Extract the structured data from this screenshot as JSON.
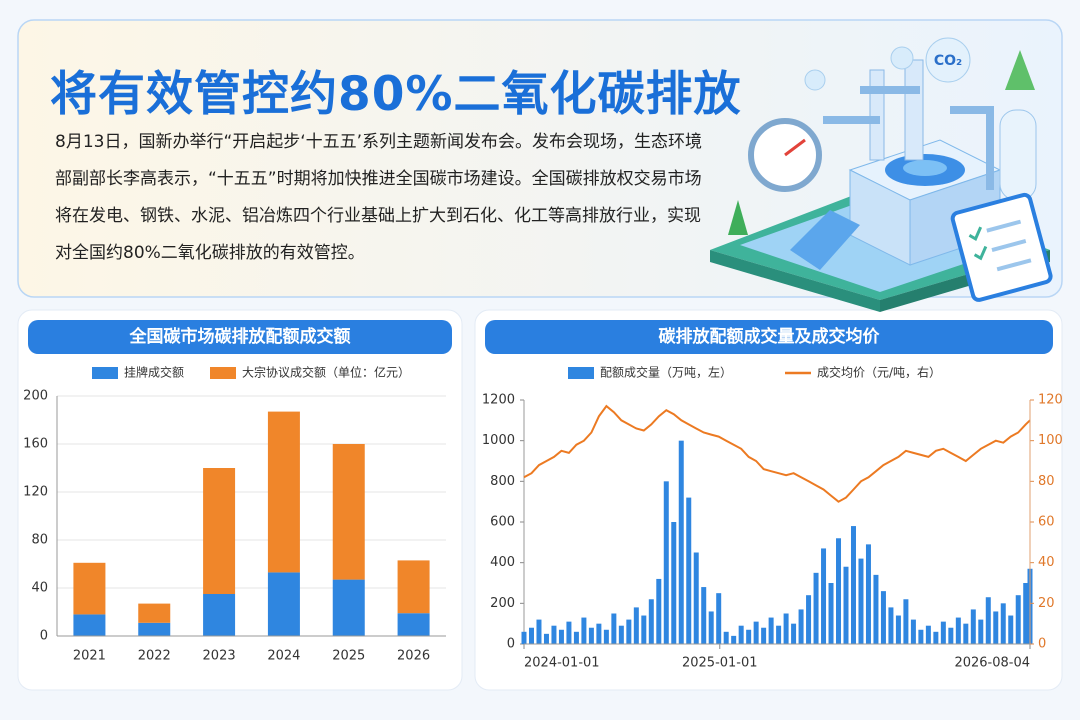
{
  "header": {
    "title": "将有效管控约80%二氧化碳排放",
    "body": "8月13日，国新办举行“开启起步‘十五五’系列主题新闻发布会。发布会现场，生态环境部副部长李高表示，“十五五”时期将加快推进全国碳市场建设。全国碳排放权交易市场将在发电、钢铁、水泥、铝冶炼四个行业基础上扩大到石化、化工等高排放行业，实现对全国约80%二氧化碳排放的有效管控。",
    "badge": "CO₂"
  },
  "chart_data": [
    {
      "type": "bar",
      "stacked": true,
      "title": "全国碳市场碳排放配额成交额",
      "categories": [
        "2021",
        "2022",
        "2023",
        "2024",
        "2025",
        "2026"
      ],
      "series": [
        {
          "name": "挂牌成交额",
          "color": "#2f86e0",
          "values": [
            18,
            11,
            35,
            53,
            47,
            19
          ]
        },
        {
          "name": "大宗协议成交额（单位：亿元）",
          "color": "#f0862a",
          "values": [
            43,
            16,
            105,
            134,
            113,
            44
          ]
        }
      ],
      "ylim": [
        0,
        200
      ],
      "yticks": [
        0,
        40,
        80,
        120,
        160,
        200
      ],
      "grid": true
    },
    {
      "type": "combo",
      "title": "碳排放配额成交量及成交均价",
      "x": [
        "2024-01-01",
        "2024-01-15",
        "2024-01-29",
        "2024-02-12",
        "2024-02-26",
        "2024-03-11",
        "2024-03-25",
        "2024-04-08",
        "2024-04-22",
        "2024-05-06",
        "2024-05-20",
        "2024-06-03",
        "2024-06-17",
        "2024-07-01",
        "2024-07-15",
        "2024-07-29",
        "2024-08-12",
        "2024-08-26",
        "2024-09-09",
        "2024-09-23",
        "2024-10-07",
        "2024-10-21",
        "2024-11-04",
        "2024-11-18",
        "2024-12-02",
        "2024-12-16",
        "2024-12-30",
        "2025-01-13",
        "2025-01-27",
        "2025-02-10",
        "2025-02-24",
        "2025-03-10",
        "2025-03-24",
        "2025-04-07",
        "2025-04-21",
        "2025-05-05",
        "2025-05-19",
        "2025-06-02",
        "2025-06-16",
        "2025-06-30",
        "2025-07-14",
        "2025-07-28",
        "2025-08-11",
        "2025-08-25",
        "2025-09-08",
        "2025-09-22",
        "2025-10-06",
        "2025-10-20",
        "2025-11-03",
        "2025-11-17",
        "2025-12-01",
        "2025-12-15",
        "2025-12-29",
        "2026-01-12",
        "2026-01-26",
        "2026-02-09",
        "2026-02-23",
        "2026-03-09",
        "2026-03-23",
        "2026-04-06",
        "2026-04-20",
        "2026-05-04",
        "2026-05-18",
        "2026-06-01",
        "2026-06-15",
        "2026-06-29",
        "2026-07-13",
        "2026-07-27",
        "2026-08-04"
      ],
      "series": [
        {
          "name": "配额成交量（万吨，左）",
          "type": "bar",
          "color": "#2f86e0",
          "values": [
            60,
            80,
            120,
            50,
            90,
            70,
            110,
            60,
            130,
            80,
            100,
            70,
            150,
            90,
            120,
            180,
            140,
            220,
            320,
            800,
            600,
            1000,
            720,
            450,
            280,
            160,
            250,
            60,
            40,
            90,
            70,
            110,
            80,
            130,
            90,
            150,
            100,
            170,
            240,
            350,
            470,
            300,
            520,
            380,
            580,
            420,
            490,
            340,
            260,
            180,
            140,
            220,
            120,
            70,
            90,
            60,
            110,
            80,
            130,
            100,
            170,
            120,
            230,
            160,
            200,
            140,
            240,
            300,
            370
          ]
        },
        {
          "name": "成交均价（元/吨，右）",
          "type": "line",
          "axis": "y2",
          "color": "#ec7a22",
          "values": [
            82,
            84,
            88,
            90,
            92,
            95,
            94,
            98,
            100,
            104,
            112,
            117,
            114,
            110,
            108,
            106,
            105,
            108,
            112,
            115,
            113,
            110,
            108,
            106,
            104,
            103,
            102,
            100,
            98,
            96,
            92,
            90,
            86,
            85,
            84,
            83,
            84,
            82,
            80,
            78,
            76,
            73,
            70,
            72,
            76,
            80,
            82,
            85,
            88,
            90,
            92,
            95,
            94,
            93,
            92,
            95,
            96,
            94,
            92,
            90,
            93,
            96,
            98,
            100,
            99,
            102,
            104,
            108,
            110
          ]
        }
      ],
      "xlim": [
        "2024-01-01",
        "2026-08-04"
      ],
      "xticks": [
        "2024-01-01",
        "2025-01-01",
        "2026-08-04"
      ],
      "ylim": [
        0,
        1200
      ],
      "yticks": [
        0,
        200,
        400,
        600,
        800,
        1000,
        1200
      ],
      "y2lim": [
        0,
        120
      ],
      "y2ticks": [
        0,
        20,
        40,
        60,
        80,
        100,
        120
      ],
      "grid": false
    }
  ]
}
